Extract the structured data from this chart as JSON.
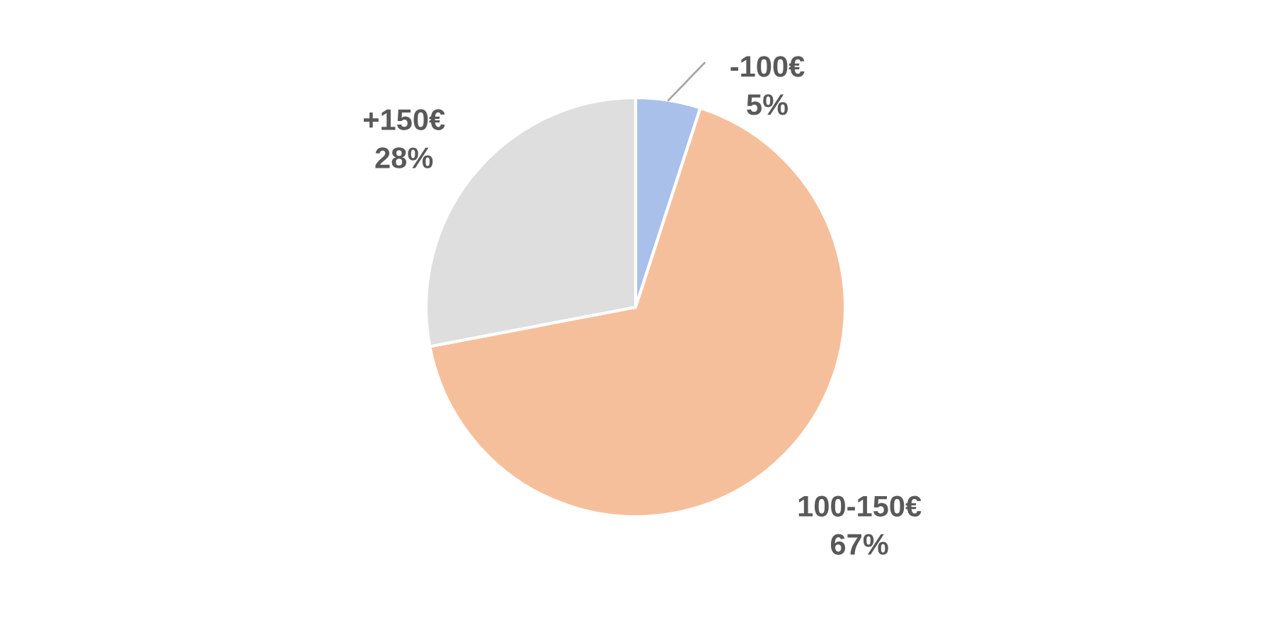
{
  "chart_data": {
    "type": "pie",
    "categories": [
      "-100€",
      "100-150€",
      "+150€"
    ],
    "values": [
      5,
      67,
      28
    ],
    "value_labels": [
      "5%",
      "67%",
      "28%"
    ],
    "colors": [
      "#a9c0ea",
      "#f6bf9b",
      "#dedede"
    ],
    "legend": false
  }
}
